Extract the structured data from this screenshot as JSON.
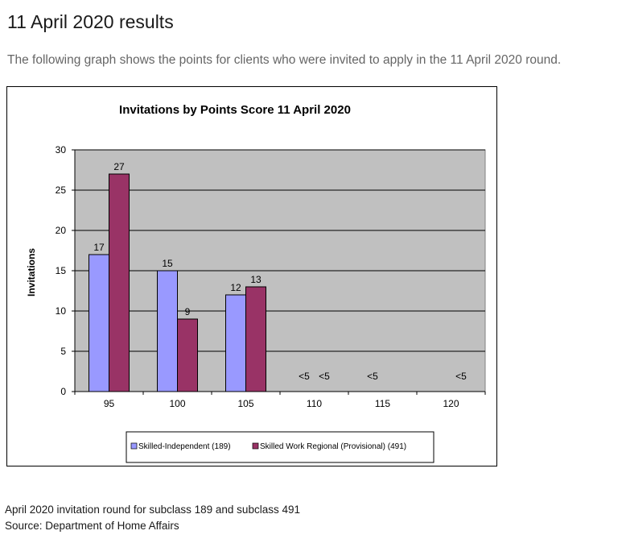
{
  "page": {
    "heading": "11 April 2020 results",
    "intro": "The following graph shows the points for clients who were invited to apply in the 11 April 2020 round.",
    "caption_line1": "April 2020 invitation round for subclass 189 and subclass 491",
    "caption_line2": "Source: Department of Home Affairs"
  },
  "colors": {
    "series1": "#9999ff",
    "series2": "#993366",
    "plot_bg": "#c0c0c0"
  },
  "chart_data": {
    "type": "bar",
    "title": "Invitations by Points Score 11 April 2020",
    "xlabel": "",
    "ylabel": "Invitations",
    "categories": [
      "95",
      "100",
      "105",
      "110",
      "115",
      "120"
    ],
    "ylim": [
      0,
      30
    ],
    "yticks": [
      0,
      5,
      10,
      15,
      20,
      25,
      30
    ],
    "grid": true,
    "legend": "bottom",
    "series": [
      {
        "name": "Skilled-Independent (189)",
        "values": [
          17,
          15,
          12,
          null,
          null,
          null
        ],
        "labels": [
          "17",
          "15",
          "12",
          "<5",
          "<5",
          ""
        ]
      },
      {
        "name": "Skilled Work Regional (Provisional) (491)",
        "values": [
          27,
          9,
          13,
          null,
          null,
          null
        ],
        "labels": [
          "27",
          "9",
          "13",
          "<5",
          "",
          "<5"
        ]
      }
    ]
  }
}
